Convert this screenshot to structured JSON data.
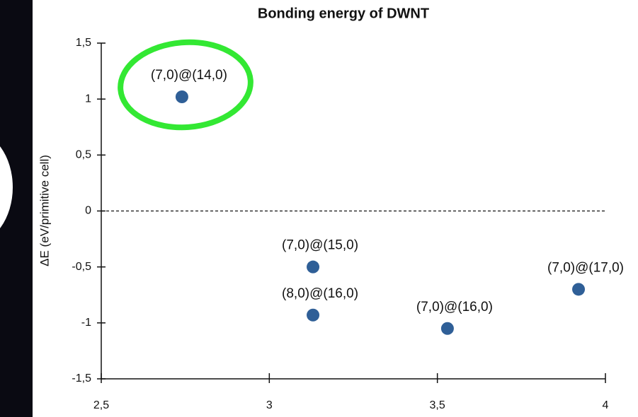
{
  "chart_data": {
    "type": "scatter",
    "title": "Bonding energy of DWNT",
    "y_label": "ΔE (eV/primitive cell)",
    "x": [
      2.74,
      3.13,
      3.13,
      3.53,
      3.92
    ],
    "values": [
      1.02,
      -0.5,
      -0.93,
      -1.05,
      -0.7
    ],
    "labels": [
      "(7,0)@(14,0)",
      "(7,0)@(15,0)",
      "(8,0)@(16,0)",
      "(7,0)@(16,0)",
      "(7,0)@(17,0)"
    ],
    "color": "#2f5f97",
    "xlim": [
      2.5,
      4
    ],
    "xticks": [
      {
        "value": 2.5,
        "label": "2,5"
      },
      3,
      {
        "value": 3.5,
        "label": "3,5"
      },
      4
    ],
    "ylim": [
      -1.5,
      1.5
    ],
    "yticks": [
      {
        "value": -1.5,
        "label": "-1,5"
      },
      -1,
      {
        "value": -0.5,
        "label": "-0,5"
      },
      0,
      {
        "value": 0.5,
        "label": "0,5"
      },
      1,
      {
        "value": 1.5,
        "label": "1,5"
      }
    ],
    "zero_line": true
  }
}
